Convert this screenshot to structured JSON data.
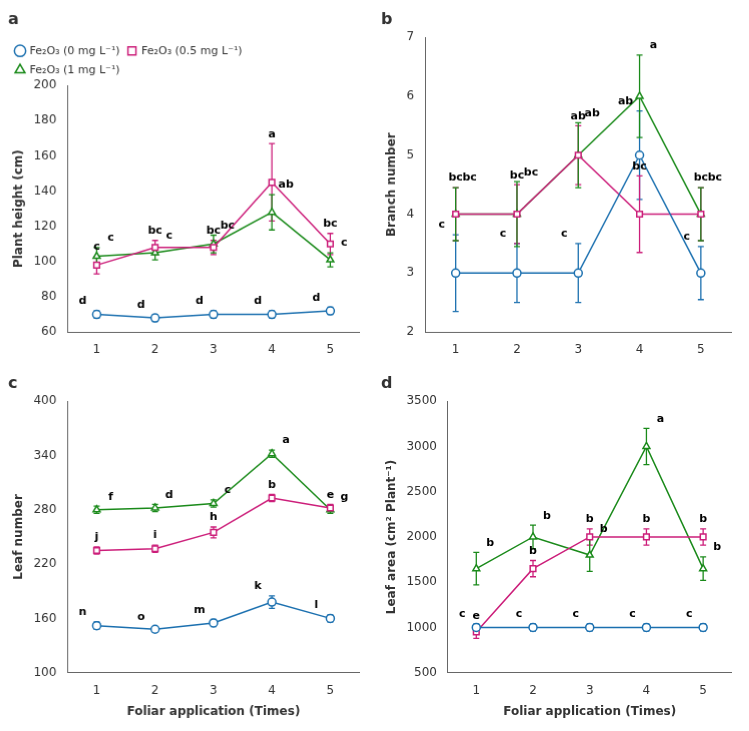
{
  "chart_data": [
    {
      "type": "line",
      "title": "a",
      "ylabel": "Plant height (cm)",
      "x": [
        1,
        2,
        3,
        4,
        5
      ],
      "xlim": [
        0.5,
        5.5
      ],
      "xticks": [
        1,
        2,
        3,
        4,
        5
      ],
      "ylim": [
        60,
        200
      ],
      "yticks": [
        60,
        80,
        100,
        120,
        140,
        160,
        180,
        200
      ],
      "grid": false,
      "legend": "upper left",
      "series": [
        {
          "name": "Fe₂O₃ (0 mg L⁻¹)",
          "color": "#1a6faf",
          "marker": "circle",
          "values": [
            70,
            68,
            70,
            70,
            72
          ],
          "errors": [
            2,
            2,
            2,
            2,
            2
          ],
          "point_labels": [
            "d",
            "d",
            "d",
            "d",
            "d"
          ]
        },
        {
          "name": "Fe₂O₃ (0.5 mg L⁻¹)",
          "color": "#cc1e7a",
          "marker": "square",
          "values": [
            98,
            108,
            108,
            145,
            110
          ],
          "errors": [
            5,
            4,
            4,
            22,
            6
          ],
          "point_labels": [
            "c",
            "bc",
            "bc",
            "a",
            "bc"
          ]
        },
        {
          "name": "Fe₂O₃ (1 mg L⁻¹)",
          "color": "#1a8a1a",
          "marker": "triangle",
          "values": [
            103,
            105,
            110,
            128,
            101
          ],
          "errors": [
            5,
            4,
            5,
            10,
            4
          ],
          "point_labels": [
            "c",
            "c",
            "bc",
            "ab",
            "c"
          ]
        }
      ]
    },
    {
      "type": "line",
      "title": "b",
      "ylabel": "Branch number",
      "x": [
        1,
        2,
        3,
        4,
        5
      ],
      "xlim": [
        0.5,
        5.5
      ],
      "xticks": [
        1,
        2,
        3,
        4,
        5
      ],
      "ylim": [
        2,
        7
      ],
      "yticks": [
        2,
        3,
        4,
        5,
        6,
        7
      ],
      "grid": false,
      "series": [
        {
          "color": "#1a6faf",
          "marker": "circle",
          "values": [
            3,
            3,
            3,
            5,
            3
          ],
          "errors": [
            0.65,
            0.5,
            0.5,
            0.75,
            0.45
          ],
          "point_labels": [
            "c",
            "c",
            "c",
            "ab",
            "c"
          ]
        },
        {
          "color": "#cc1e7a",
          "marker": "square",
          "values": [
            4,
            4,
            5,
            4,
            4
          ],
          "errors": [
            0.45,
            0.5,
            0.5,
            0.65,
            0.45
          ],
          "point_labels": [
            "bc",
            "bc",
            "ab",
            "bc",
            "bc"
          ]
        },
        {
          "color": "#1a8a1a",
          "marker": "triangle",
          "values": [
            4,
            4,
            5,
            6,
            4
          ],
          "errors": [
            0.45,
            0.55,
            0.55,
            0.7,
            0.45
          ],
          "point_labels": [
            "bc",
            "bc",
            "ab",
            "a",
            "bc"
          ]
        }
      ]
    },
    {
      "type": "line",
      "title": "c",
      "ylabel": "Leaf number",
      "xlabel": "Foliar application (Times)",
      "x": [
        1,
        2,
        3,
        4,
        5
      ],
      "xlim": [
        0.5,
        5.5
      ],
      "xticks": [
        1,
        2,
        3,
        4,
        5
      ],
      "ylim": [
        100,
        400
      ],
      "yticks": [
        100,
        160,
        220,
        280,
        340,
        400
      ],
      "grid": false,
      "series": [
        {
          "color": "#1a6faf",
          "marker": "circle",
          "values": [
            152,
            148,
            155,
            178,
            160
          ],
          "errors": [
            4,
            3,
            4,
            7,
            4
          ],
          "point_labels": [
            "n",
            "o",
            "m",
            "k",
            "l"
          ]
        },
        {
          "color": "#cc1e7a",
          "marker": "square",
          "values": [
            235,
            237,
            255,
            293,
            282
          ],
          "errors": [
            4,
            4,
            6,
            4,
            4
          ],
          "point_labels": [
            "j",
            "i",
            "h",
            "b",
            "e"
          ]
        },
        {
          "color": "#1a8a1a",
          "marker": "triangle",
          "values": [
            280,
            282,
            287,
            342,
            280
          ],
          "errors": [
            4,
            4,
            4,
            4,
            4
          ],
          "point_labels": [
            "f",
            "d",
            "c",
            "a",
            "g"
          ]
        }
      ]
    },
    {
      "type": "line",
      "title": "d",
      "ylabel": "Leaf area (cm² Plant⁻¹)",
      "xlabel": "Foliar application (Times)",
      "x": [
        1,
        2,
        3,
        4,
        5
      ],
      "xlim": [
        0.5,
        5.5
      ],
      "xticks": [
        1,
        2,
        3,
        4,
        5
      ],
      "ylim": [
        500,
        3500
      ],
      "yticks": [
        500,
        1000,
        1500,
        2000,
        2500,
        3000,
        3500
      ],
      "grid": false,
      "series": [
        {
          "color": "#1a6faf",
          "marker": "circle",
          "values": [
            1000,
            1000,
            1000,
            1000,
            1000
          ],
          "errors": [
            40,
            40,
            40,
            40,
            40
          ],
          "point_labels": [
            "c",
            "c",
            "c",
            "c",
            "c"
          ]
        },
        {
          "color": "#cc1e7a",
          "marker": "square",
          "values": [
            950,
            1650,
            2000,
            2000,
            2000
          ],
          "errors": [
            70,
            90,
            90,
            90,
            90
          ],
          "point_labels": [
            "e",
            "b",
            "b",
            "b",
            "b"
          ]
        },
        {
          "color": "#1a8a1a",
          "marker": "triangle",
          "values": [
            1650,
            2000,
            1800,
            3000,
            1650
          ],
          "errors": [
            180,
            130,
            180,
            200,
            130
          ],
          "point_labels": [
            "b",
            "b",
            "b",
            "a",
            "b"
          ]
        }
      ]
    }
  ]
}
